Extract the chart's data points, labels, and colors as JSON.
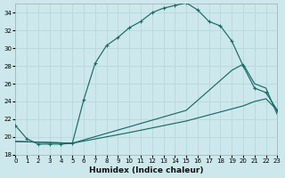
{
  "xlabel": "Humidex (Indice chaleur)",
  "bg_color": "#cce8ec",
  "grid_color": "#b8d8dc",
  "line_color": "#1a6b64",
  "xlim": [
    0,
    23
  ],
  "ylim": [
    18,
    35
  ],
  "yticks": [
    18,
    20,
    22,
    24,
    26,
    28,
    30,
    32,
    34
  ],
  "xticks": [
    0,
    1,
    2,
    3,
    4,
    5,
    6,
    7,
    8,
    9,
    10,
    11,
    12,
    13,
    14,
    15,
    16,
    17,
    18,
    19,
    20,
    21,
    22,
    23
  ],
  "curve1_x": [
    0,
    1,
    2,
    3,
    4,
    5,
    6,
    7,
    8,
    9,
    10,
    11,
    12,
    13,
    14,
    15,
    16,
    17,
    18,
    19,
    20,
    21,
    22,
    23
  ],
  "curve1_y": [
    21.3,
    19.8,
    19.2,
    19.2,
    19.2,
    19.3,
    24.2,
    28.3,
    30.3,
    31.2,
    32.3,
    33.0,
    34.0,
    34.5,
    34.8,
    35.1,
    34.3,
    33.0,
    32.5,
    30.8,
    28.0,
    25.5,
    25.0,
    23.0
  ],
  "curve2_x": [
    0,
    5,
    15,
    19,
    20,
    21,
    22,
    23
  ],
  "curve2_y": [
    19.5,
    19.3,
    23.0,
    27.5,
    28.2,
    26.0,
    25.5,
    22.5
  ],
  "curve3_x": [
    0,
    5,
    10,
    15,
    20,
    21,
    22,
    23
  ],
  "curve3_y": [
    19.5,
    19.3,
    20.5,
    21.8,
    23.5,
    24.0,
    24.3,
    23.0
  ]
}
